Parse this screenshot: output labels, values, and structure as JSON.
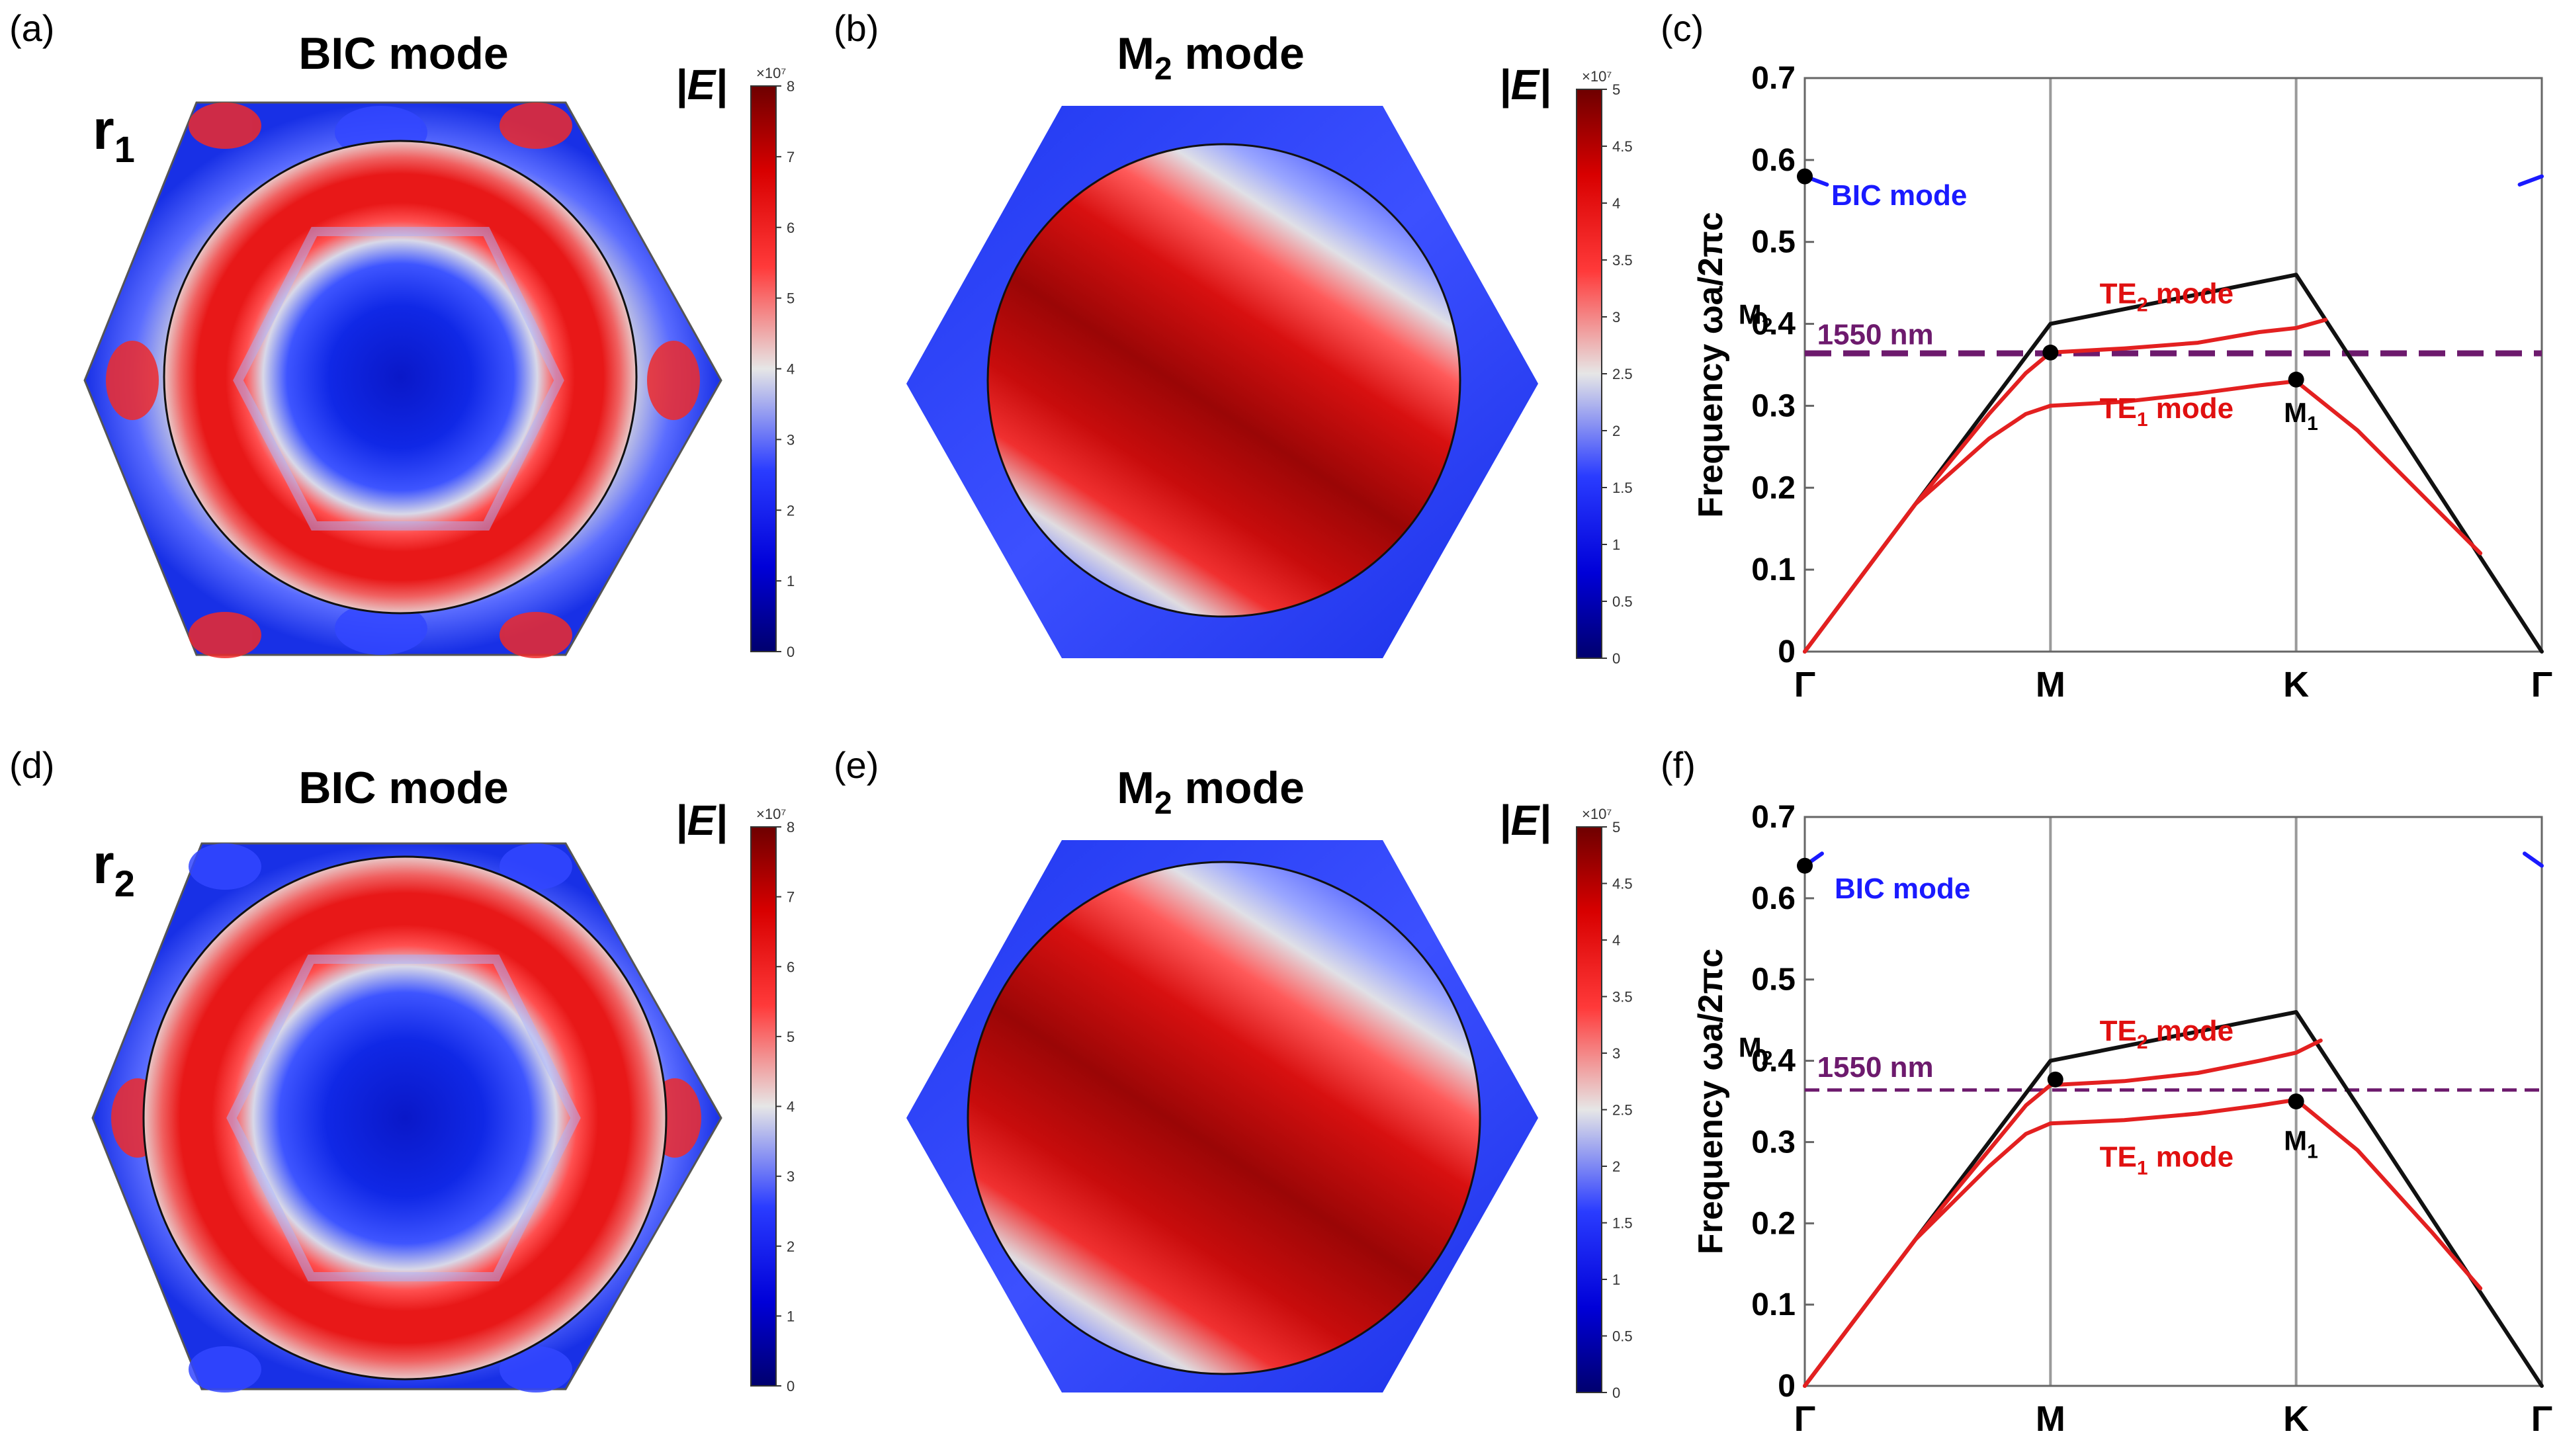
{
  "colors": {
    "field_blue": "#0a1fe0",
    "field_red": "#d80f0f",
    "field_darkred": "#8b0505",
    "white": "#e8e8e8",
    "black_line": "#111111",
    "te1_red": "#e32020",
    "te2_red": "#e32020",
    "bic_blue": "#1a1aff",
    "line_1550": "#6d1a6d",
    "grid_gray": "#9a9a9a"
  },
  "field_panels": [
    {
      "label": "(a)",
      "title": "BIC mode",
      "title_sub": "",
      "row_label": "r",
      "row_label_sub": "1",
      "quantity": "|E|",
      "colorbar": {
        "exponent": "×10⁷",
        "ticks": [
          "8",
          "7",
          "6",
          "5",
          "4",
          "3",
          "2",
          "1",
          "0"
        ],
        "max": 8
      },
      "pattern": "bic"
    },
    {
      "label": "(b)",
      "title": "M",
      "title_sub": "2",
      "title_suffix": " mode",
      "quantity": "|E|",
      "colorbar": {
        "exponent": "×10⁷",
        "ticks": [
          "5",
          "4.5",
          "4",
          "3.5",
          "3",
          "2.5",
          "2",
          "1.5",
          "1",
          "0.5",
          "0"
        ],
        "max": 5
      },
      "pattern": "m2"
    },
    {
      "label": "(d)",
      "title": "BIC mode",
      "title_sub": "",
      "row_label": "r",
      "row_label_sub": "2",
      "quantity": "|E|",
      "colorbar": {
        "exponent": "×10⁷",
        "ticks": [
          "8",
          "7",
          "6",
          "5",
          "4",
          "3",
          "2",
          "1",
          "0"
        ],
        "max": 8
      },
      "pattern": "bic"
    },
    {
      "label": "(e)",
      "title": "M",
      "title_sub": "2",
      "title_suffix": " mode",
      "quantity": "|E|",
      "colorbar": {
        "exponent": "×10⁷",
        "ticks": [
          "5",
          "4.5",
          "4",
          "3.5",
          "3",
          "2.5",
          "2",
          "1.5",
          "1",
          "0.5",
          "0"
        ],
        "max": 5
      },
      "pattern": "m2"
    }
  ],
  "chart_data": [
    {
      "panel_label": "(c)",
      "type": "line",
      "ylabel": "Frequency ωa/2πc",
      "ylim": [
        0,
        0.7
      ],
      "yticks": [
        0,
        0.1,
        0.2,
        0.3,
        0.4,
        0.5,
        0.6,
        0.7
      ],
      "ytick_labels": [
        "0",
        "0.1",
        "0.2",
        "0.3",
        "0.4",
        "0.5",
        "0.6",
        "0.7"
      ],
      "xlim": [
        0,
        3
      ],
      "x_ticks": [
        0,
        1,
        2,
        3
      ],
      "categories": [
        "Γ",
        "M",
        "K",
        "Γ"
      ],
      "series": [
        {
          "name": "light line",
          "color": "black",
          "x": [
            0,
            1,
            2,
            3
          ],
          "y": [
            0,
            0.4,
            0.46,
            0
          ]
        },
        {
          "name": "TE2 mode",
          "color": "red",
          "x": [
            0,
            0.2,
            0.45,
            0.75,
            0.9,
            1.0,
            1.3,
            1.6,
            1.85,
            2.0,
            2.12
          ],
          "y": [
            0,
            0.08,
            0.18,
            0.29,
            0.34,
            0.365,
            0.37,
            0.377,
            0.39,
            0.395,
            0.405
          ]
        },
        {
          "name": "TE1 mode",
          "color": "red",
          "x": [
            0,
            0.2,
            0.45,
            0.75,
            0.9,
            1.0,
            1.3,
            1.6,
            1.85,
            2.0,
            2.25,
            2.55,
            2.75
          ],
          "y": [
            0,
            0.08,
            0.18,
            0.26,
            0.29,
            0.3,
            0.305,
            0.315,
            0.325,
            0.33,
            0.27,
            0.18,
            0.12
          ]
        },
        {
          "name": "BIC mode",
          "color": "blue",
          "x": [
            0,
            0.09
          ],
          "y": [
            0.58,
            0.57
          ]
        },
        {
          "name": "BIC mode (Γ right)",
          "color": "blue",
          "x": [
            2.91,
            3.0
          ],
          "y": [
            0.57,
            0.58
          ]
        }
      ],
      "hline": {
        "value": 0.364,
        "label": "1550 nm",
        "style": "thick-dashed"
      },
      "markers": [
        {
          "name": "BIC",
          "x": 0,
          "y": 0.58
        },
        {
          "name": "M2",
          "x": 1,
          "y": 0.365
        },
        {
          "name": "M1",
          "x": 2.0,
          "y": 0.332
        }
      ],
      "annotations": {
        "bic": "BIC mode",
        "te2_main": "TE",
        "te2_sub": "2",
        "te2_suffix": " mode",
        "te1_main": "TE",
        "te1_sub": "1",
        "te1_suffix": " mode",
        "m2_main": "M",
        "m2_sub": "2",
        "m1_main": "M",
        "m1_sub": "1",
        "line_label": "1550 nm"
      }
    },
    {
      "panel_label": "(f)",
      "type": "line",
      "ylabel": "Frequency ωa/2πc",
      "ylim": [
        0,
        0.7
      ],
      "yticks": [
        0,
        0.1,
        0.2,
        0.3,
        0.4,
        0.5,
        0.6,
        0.7
      ],
      "ytick_labels": [
        "0",
        "0.1",
        "0.2",
        "0.3",
        "0.4",
        "0.5",
        "0.6",
        "0.7"
      ],
      "xlim": [
        0,
        3
      ],
      "x_ticks": [
        0,
        1,
        2,
        3
      ],
      "categories": [
        "Γ",
        "M",
        "K",
        "Γ"
      ],
      "series": [
        {
          "name": "light line",
          "color": "black",
          "x": [
            0,
            1,
            2,
            3
          ],
          "y": [
            0,
            0.4,
            0.46,
            0
          ]
        },
        {
          "name": "TE2 mode",
          "color": "red",
          "x": [
            0,
            0.2,
            0.45,
            0.75,
            0.9,
            1.0,
            1.3,
            1.6,
            1.85,
            2.0,
            2.1
          ],
          "y": [
            0,
            0.08,
            0.18,
            0.29,
            0.345,
            0.37,
            0.375,
            0.385,
            0.4,
            0.41,
            0.425
          ]
        },
        {
          "name": "TE1 mode",
          "color": "red",
          "x": [
            0,
            0.2,
            0.45,
            0.75,
            0.9,
            1.0,
            1.3,
            1.6,
            1.85,
            2.0,
            2.25,
            2.55,
            2.75
          ],
          "y": [
            0,
            0.08,
            0.18,
            0.27,
            0.31,
            0.323,
            0.327,
            0.335,
            0.345,
            0.352,
            0.29,
            0.19,
            0.12
          ]
        },
        {
          "name": "BIC mode",
          "color": "blue",
          "x": [
            0,
            0.07
          ],
          "y": [
            0.64,
            0.655
          ]
        },
        {
          "name": "BIC mode (Γ right)",
          "color": "blue",
          "x": [
            2.93,
            3.0
          ],
          "y": [
            0.655,
            0.64
          ]
        }
      ],
      "hline": {
        "value": 0.364,
        "label": "1550 nm",
        "style": "thin-dashed"
      },
      "markers": [
        {
          "name": "BIC",
          "x": 0,
          "y": 0.64
        },
        {
          "name": "M2",
          "x": 1.02,
          "y": 0.377
        },
        {
          "name": "M1",
          "x": 2.0,
          "y": 0.35
        }
      ],
      "annotations": {
        "bic": "BIC mode",
        "te2_main": "TE",
        "te2_sub": "2",
        "te2_suffix": " mode",
        "te1_main": "TE",
        "te1_sub": "1",
        "te1_suffix": " mode",
        "m2_main": "M",
        "m2_sub": "2",
        "m1_main": "M",
        "m1_sub": "1",
        "line_label": "1550 nm"
      }
    }
  ]
}
